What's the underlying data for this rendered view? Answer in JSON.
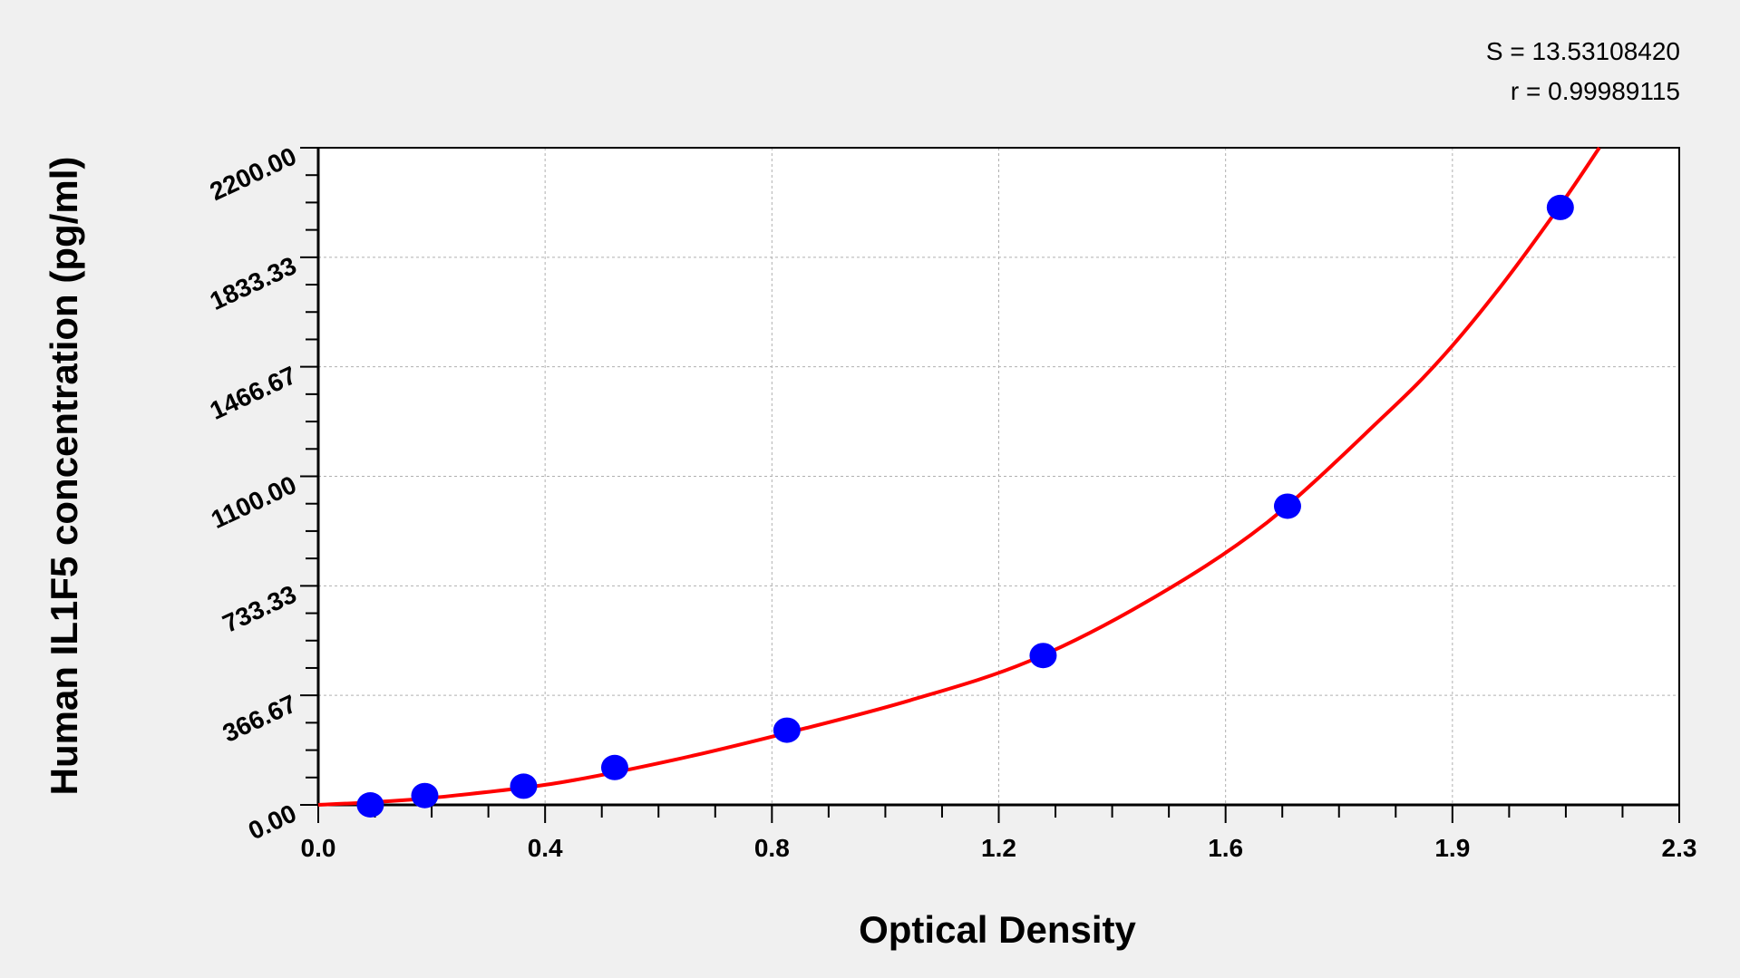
{
  "chart_data": {
    "type": "scatter",
    "xlabel": "Optical Density",
    "ylabel": "Human IL1F5 concentration (pg/ml)",
    "xlim": [
      0,
      2.3
    ],
    "ylim": [
      0,
      2200
    ],
    "x_tick_labels": [
      "0.0",
      "0.4",
      "0.8",
      "1.2",
      "1.6",
      "1.9",
      "2.3"
    ],
    "y_tick_labels": [
      "0.00",
      "366.67",
      "733.33",
      "1100.00",
      "1466.67",
      "1833.33",
      "2200.00"
    ],
    "grid": true,
    "annotations": [
      "S = 13.53108420",
      "r = 0.99989115"
    ],
    "points": {
      "color": "#0000ff",
      "x": [
        0.088,
        0.18,
        0.347,
        0.501,
        0.792,
        1.225,
        1.638,
        2.099
      ],
      "y": [
        0,
        31.25,
        62.5,
        125,
        250,
        500,
        1000,
        2000
      ]
    },
    "fit_curve": {
      "color": "#ff0000",
      "x": [
        0,
        0.1,
        0.2,
        0.4,
        0.6,
        0.8,
        1.0,
        1.2,
        1.4,
        1.6,
        1.8,
        1.9,
        2.0,
        2.1,
        2.165
      ],
      "y": [
        0,
        10,
        25,
        72,
        150,
        245,
        350,
        480,
        680,
        940,
        1300,
        1500,
        1740,
        2010,
        2200
      ]
    }
  }
}
